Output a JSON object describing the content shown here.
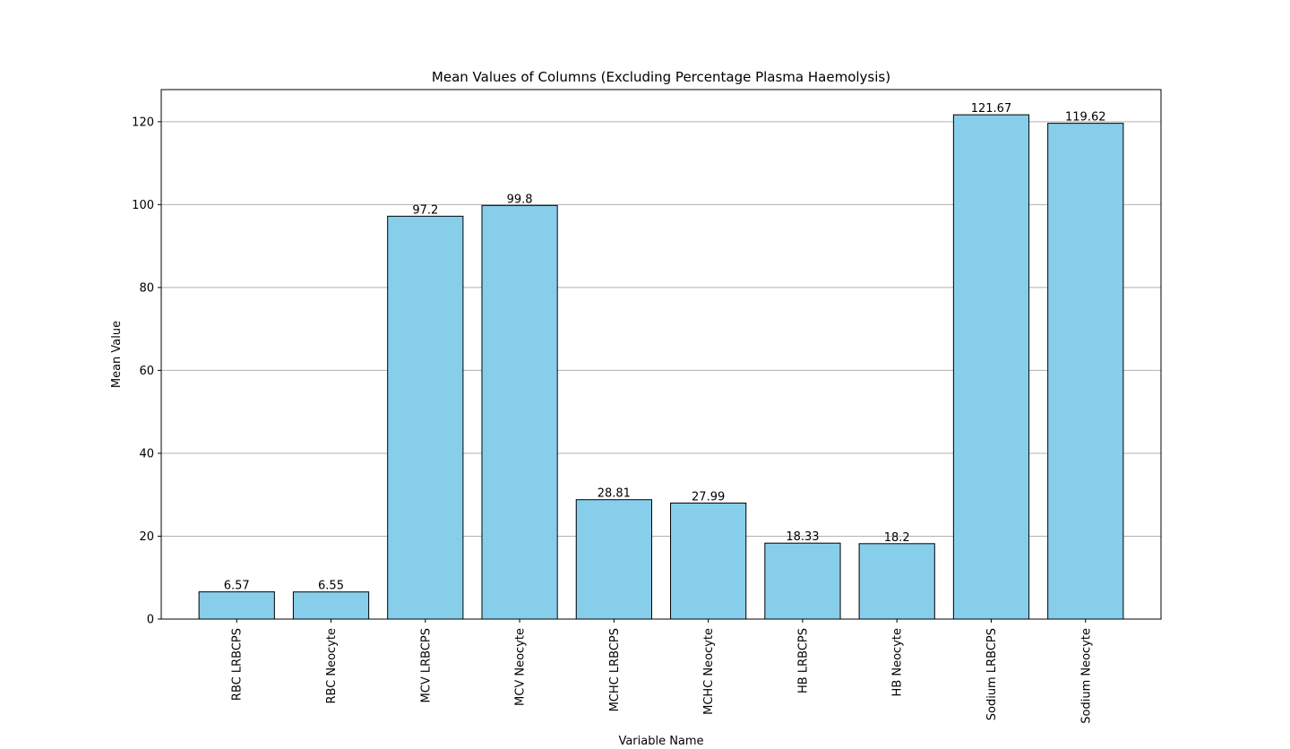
{
  "chart_data": {
    "type": "bar",
    "title": "Mean Values of Columns (Excluding Percentage Plasma Haemolysis)",
    "xlabel": "Variable Name",
    "ylabel": "Mean Value",
    "categories": [
      "RBC LRBCPS",
      "RBC Neocyte",
      "MCV LRBCPS",
      "MCV Neocyte",
      "MCHC LRBCPS",
      "MCHC Neocyte",
      "HB LRBCPS",
      "HB Neocyte",
      "Sodium LRBCPS",
      "Sodium Neocyte"
    ],
    "values": [
      6.57,
      6.55,
      97.2,
      99.8,
      28.81,
      27.99,
      18.33,
      18.2,
      121.67,
      119.62
    ],
    "data_labels": [
      "6.57",
      "6.55",
      "97.2",
      "99.8",
      "28.81",
      "27.99",
      "18.33",
      "18.2",
      "121.67",
      "119.62"
    ],
    "ylim": [
      0,
      127.75
    ],
    "yticks": [
      0,
      20,
      40,
      60,
      80,
      100,
      120
    ],
    "ytick_labels": [
      "0",
      "20",
      "40",
      "60",
      "80",
      "100",
      "120"
    ],
    "grid": "y",
    "bar_color": "#87CEEB",
    "bar_edge_color": "#000000",
    "grid_color": "#b0b0b0"
  }
}
